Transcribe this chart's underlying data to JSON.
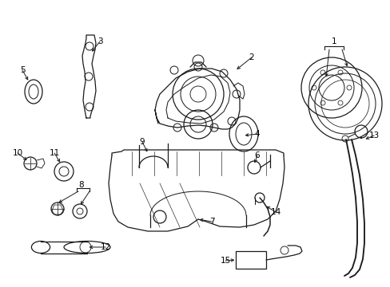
{
  "background_color": "#ffffff",
  "line_color": "#1a1a1a",
  "label_color": "#000000",
  "figsize": [
    4.89,
    3.6
  ],
  "dpi": 100,
  "lw": 0.9,
  "label_fs": 7.5
}
